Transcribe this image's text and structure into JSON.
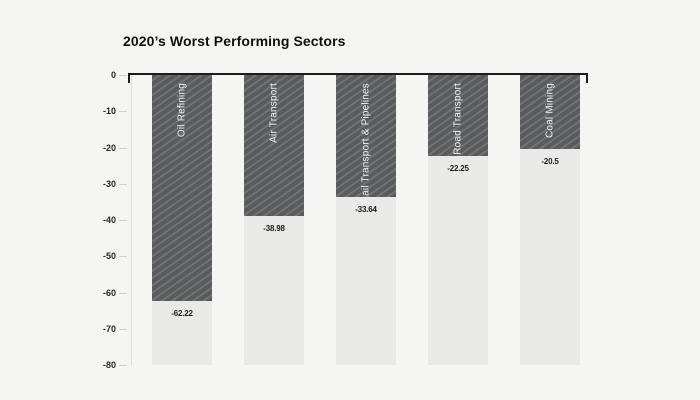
{
  "title": "2020’s Worst Performing Sectors",
  "chart_data": {
    "type": "bar",
    "title": "2020’s Worst Performing Sectors",
    "categories": [
      "Oil Refining",
      "Air Transport",
      "Rail Transport & Pipelines",
      "Road Transport",
      "Coal Mining"
    ],
    "values": [
      -62.22,
      -38.98,
      -33.64,
      -22.25,
      -20.5
    ],
    "value_labels": [
      "-62.22",
      "-38.98",
      "-33.64",
      "-22.25",
      "-20.5"
    ],
    "xlabel": "",
    "ylabel": "",
    "ylim": [
      -80,
      0
    ],
    "yticks": [
      "0",
      "-10",
      "-20",
      "-30",
      "-40",
      "-50",
      "-60",
      "-70",
      "-80"
    ],
    "grid": false,
    "legend": "none",
    "bar_pattern": "diagonal-hatch",
    "orientation": "vertical-negative"
  },
  "colors": {
    "background": "#f5f5f3",
    "column_background": "#e9e9e7",
    "bar_fill": "#5a5b5d",
    "bar_hatch": "#6d6e70",
    "axis": "#1c1c1c",
    "tick": "#cfcfcd",
    "text": "#1d1d1d",
    "category_label": "#f1f1ef"
  }
}
